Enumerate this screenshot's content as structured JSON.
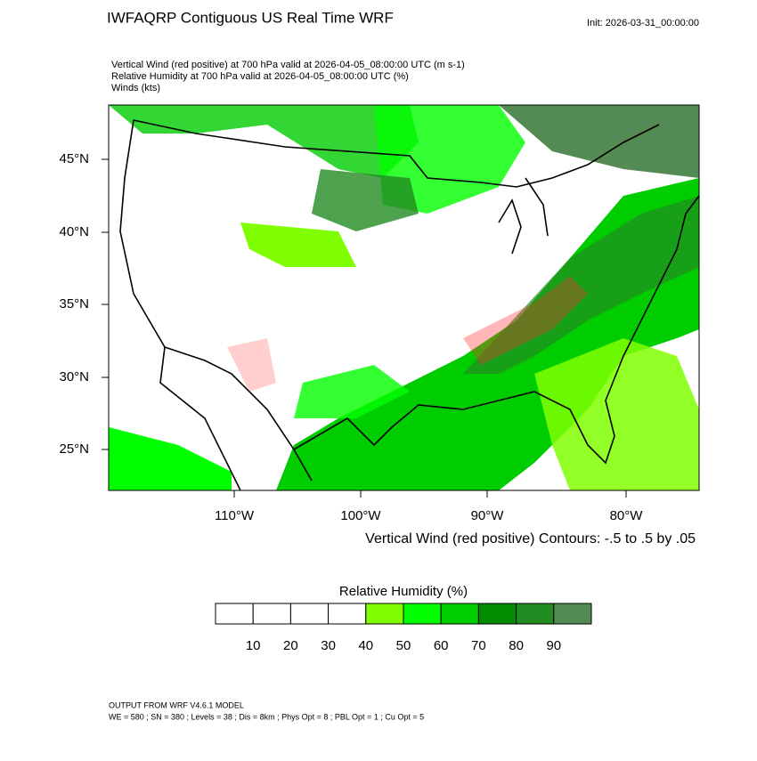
{
  "header": {
    "title": "IWFAQRP Contiguous US Real Time WRF",
    "init": "Init: 2026-03-31_00:00:00",
    "lines": [
      "Vertical Wind (red positive) at 700 hPa valid at 2026-04-05_08:00:00 UTC   (m s-1)",
      "Relative Humidity at 700 hPa valid at 2026-04-05_08:00:00 UTC   (%)",
      "Winds   (kts)"
    ]
  },
  "map": {
    "lat_labels": [
      "45°N",
      "40°N",
      "35°N",
      "30°N",
      "25°N"
    ],
    "lon_labels": [
      "110°W",
      "100°W",
      "90°W",
      "80°W"
    ],
    "contour_note": "Vertical Wind (red positive) Contours: -.5 to .5 by .05"
  },
  "colorbar": {
    "title": "Relative Humidity  (%)",
    "colors": [
      "#ffffff",
      "#ffffff",
      "#ffffff",
      "#ffffff",
      "#7fff00",
      "#00ff00",
      "#00cd00",
      "#008b00",
      "#228b22",
      "#548b54"
    ],
    "labels": [
      10,
      20,
      30,
      40,
      50,
      60,
      70,
      80,
      90
    ]
  },
  "footer": [
    "OUTPUT FROM WRF V4.6.1 MODEL",
    "WE = 580 ; SN = 380 ; Levels = 38 ; Dis = 8km ; Phys Opt = 8 ; PBL Opt = 1 ; Cu Opt = 5"
  ]
}
